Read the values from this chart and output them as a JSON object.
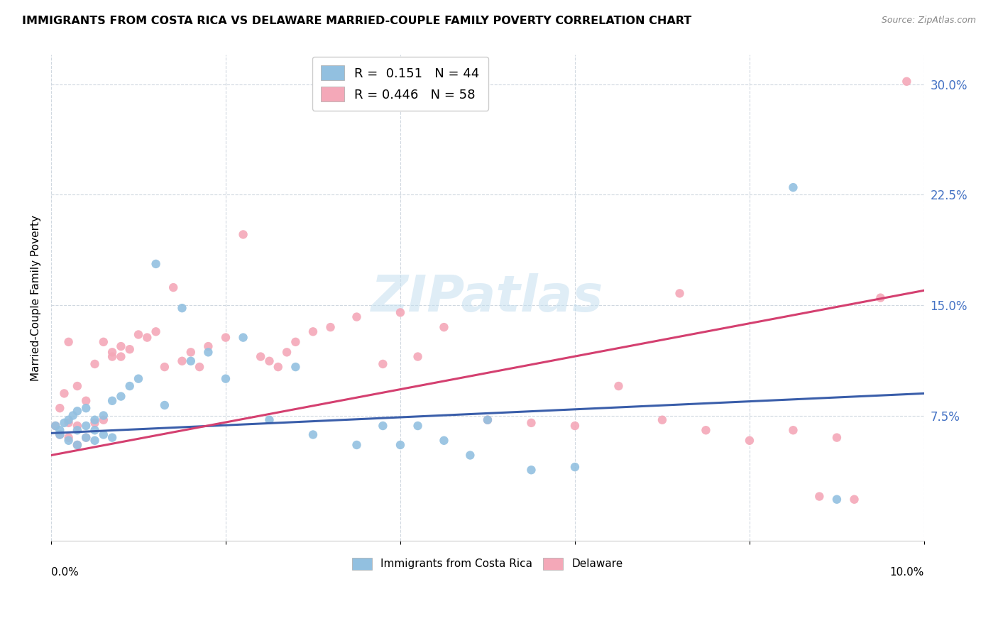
{
  "title": "IMMIGRANTS FROM COSTA RICA VS DELAWARE MARRIED-COUPLE FAMILY POVERTY CORRELATION CHART",
  "source": "Source: ZipAtlas.com",
  "ylabel": "Married-Couple Family Poverty",
  "series1_label": "Immigrants from Costa Rica",
  "series2_label": "Delaware",
  "series1_color": "#92c0e0",
  "series2_color": "#f4a8b8",
  "series1_line_color": "#3a5eaa",
  "series2_line_color": "#d44070",
  "watermark": "ZIPatlas",
  "xlim": [
    0.0,
    0.1
  ],
  "ylim": [
    -0.01,
    0.32
  ],
  "legend1_label": "R =  0.151   N = 44",
  "legend2_label": "R = 0.446   N = 58",
  "legend1_color": "#92c0e0",
  "legend2_color": "#f4a8b8",
  "series1_x": [
    0.0005,
    0.001,
    0.001,
    0.0015,
    0.002,
    0.002,
    0.0025,
    0.003,
    0.003,
    0.003,
    0.004,
    0.004,
    0.004,
    0.005,
    0.005,
    0.005,
    0.006,
    0.006,
    0.007,
    0.007,
    0.008,
    0.009,
    0.01,
    0.012,
    0.013,
    0.015,
    0.016,
    0.018,
    0.02,
    0.022,
    0.025,
    0.028,
    0.03,
    0.035,
    0.038,
    0.04,
    0.042,
    0.045,
    0.048,
    0.05,
    0.055,
    0.06,
    0.085,
    0.09
  ],
  "series1_y": [
    0.068,
    0.065,
    0.062,
    0.07,
    0.072,
    0.058,
    0.075,
    0.078,
    0.065,
    0.055,
    0.08,
    0.068,
    0.06,
    0.072,
    0.065,
    0.058,
    0.075,
    0.062,
    0.085,
    0.06,
    0.088,
    0.095,
    0.1,
    0.178,
    0.082,
    0.148,
    0.112,
    0.118,
    0.1,
    0.128,
    0.072,
    0.108,
    0.062,
    0.055,
    0.068,
    0.055,
    0.068,
    0.058,
    0.048,
    0.072,
    0.038,
    0.04,
    0.23,
    0.018
  ],
  "series2_x": [
    0.0005,
    0.001,
    0.001,
    0.0015,
    0.002,
    0.002,
    0.002,
    0.003,
    0.003,
    0.003,
    0.004,
    0.004,
    0.005,
    0.005,
    0.006,
    0.006,
    0.007,
    0.007,
    0.008,
    0.008,
    0.009,
    0.01,
    0.011,
    0.012,
    0.013,
    0.014,
    0.015,
    0.016,
    0.017,
    0.018,
    0.02,
    0.022,
    0.024,
    0.025,
    0.026,
    0.027,
    0.028,
    0.03,
    0.032,
    0.035,
    0.038,
    0.04,
    0.042,
    0.045,
    0.05,
    0.055,
    0.06,
    0.065,
    0.07,
    0.072,
    0.075,
    0.08,
    0.085,
    0.088,
    0.09,
    0.092,
    0.095,
    0.098
  ],
  "series2_y": [
    0.068,
    0.08,
    0.062,
    0.09,
    0.125,
    0.07,
    0.06,
    0.095,
    0.068,
    0.055,
    0.085,
    0.06,
    0.11,
    0.07,
    0.125,
    0.072,
    0.118,
    0.115,
    0.122,
    0.115,
    0.12,
    0.13,
    0.128,
    0.132,
    0.108,
    0.162,
    0.112,
    0.118,
    0.108,
    0.122,
    0.128,
    0.198,
    0.115,
    0.112,
    0.108,
    0.118,
    0.125,
    0.132,
    0.135,
    0.142,
    0.11,
    0.145,
    0.115,
    0.135,
    0.072,
    0.07,
    0.068,
    0.095,
    0.072,
    0.158,
    0.065,
    0.058,
    0.065,
    0.02,
    0.06,
    0.018,
    0.155,
    0.302
  ],
  "line1_x0": 0.0,
  "line1_y0": 0.063,
  "line1_x1": 0.1,
  "line1_y1": 0.09,
  "line2_x0": 0.0,
  "line2_y0": 0.048,
  "line2_x1": 0.1,
  "line2_y1": 0.16
}
